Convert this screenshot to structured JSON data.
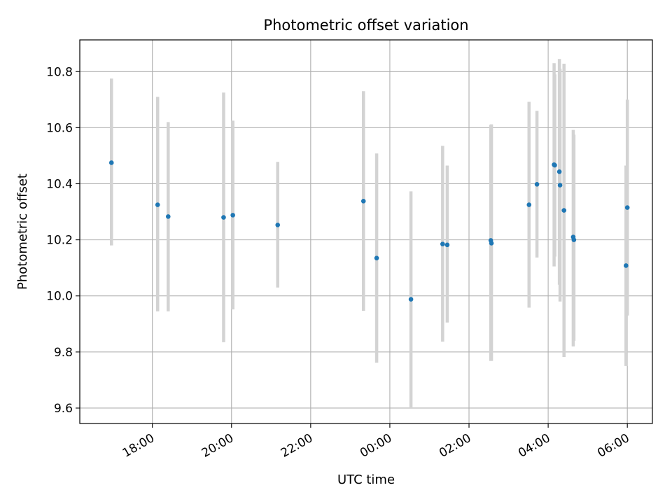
{
  "chart_data": {
    "type": "scatter",
    "title": "Photometric offset variation",
    "xlabel": "UTC time",
    "ylabel": "Photometric offset",
    "xlim": [
      "2000-01-01T16:10",
      "2000-01-02T06:38"
    ],
    "ylim": [
      9.545,
      10.913
    ],
    "grid": true,
    "x_tick_labels": [
      "18:00",
      "20:00",
      "22:00",
      "00:00",
      "02:00",
      "04:00",
      "06:00"
    ],
    "x_tick_times": [
      "2000-01-01T18:00",
      "2000-01-01T20:00",
      "2000-01-01T22:00",
      "2000-01-02T00:00",
      "2000-01-02T02:00",
      "2000-01-02T04:00",
      "2000-01-02T06:00"
    ],
    "y_tick_labels": [
      "9.6",
      "9.8",
      "10.0",
      "10.2",
      "10.4",
      "10.6",
      "10.8"
    ],
    "y_ticks": [
      9.6,
      9.8,
      10.0,
      10.2,
      10.4,
      10.6,
      10.8
    ],
    "colors": {
      "points": "#1f77b4",
      "errorbars": "#d3d3d3",
      "grid": "#b0b0b0"
    },
    "points": [
      {
        "t": "2000-01-01T16:58",
        "y": 10.475,
        "low": 10.18,
        "high": 10.775
      },
      {
        "t": "2000-01-01T18:08",
        "y": 10.325,
        "low": 9.945,
        "high": 10.71
      },
      {
        "t": "2000-01-01T18:24",
        "y": 10.283,
        "low": 9.945,
        "high": 10.62
      },
      {
        "t": "2000-01-01T19:48",
        "y": 10.28,
        "low": 9.835,
        "high": 10.725
      },
      {
        "t": "2000-01-01T20:02",
        "y": 10.288,
        "low": 9.952,
        "high": 10.625
      },
      {
        "t": "2000-01-01T21:10",
        "y": 10.253,
        "low": 10.03,
        "high": 10.478
      },
      {
        "t": "2000-01-01T23:20",
        "y": 10.338,
        "low": 9.947,
        "high": 10.73
      },
      {
        "t": "2000-01-01T23:40",
        "y": 10.135,
        "low": 9.762,
        "high": 10.508
      },
      {
        "t": "2000-01-02T00:32",
        "y": 9.988,
        "low": 9.6,
        "high": 10.373
      },
      {
        "t": "2000-01-02T01:20",
        "y": 10.185,
        "low": 9.837,
        "high": 10.535
      },
      {
        "t": "2000-01-02T01:27",
        "y": 10.182,
        "low": 9.905,
        "high": 10.465
      },
      {
        "t": "2000-01-02T02:33",
        "y": 10.198,
        "low": 9.768,
        "high": 10.61
      },
      {
        "t": "2000-01-02T02:34",
        "y": 10.188,
        "low": 9.768,
        "high": 10.612
      },
      {
        "t": "2000-01-02T03:31",
        "y": 10.325,
        "low": 9.958,
        "high": 10.692
      },
      {
        "t": "2000-01-02T03:43",
        "y": 10.398,
        "low": 10.137,
        "high": 10.66
      },
      {
        "t": "2000-01-02T04:09",
        "y": 10.468,
        "low": 10.105,
        "high": 10.83
      },
      {
        "t": "2000-01-02T04:10",
        "y": 10.466,
        "low": 10.14,
        "high": 10.79
      },
      {
        "t": "2000-01-02T04:17",
        "y": 10.443,
        "low": 10.04,
        "high": 10.845
      },
      {
        "t": "2000-01-02T04:18",
        "y": 10.395,
        "low": 9.98,
        "high": 10.81
      },
      {
        "t": "2000-01-02T04:24",
        "y": 10.305,
        "low": 9.782,
        "high": 10.828
      },
      {
        "t": "2000-01-02T04:38",
        "y": 10.21,
        "low": 9.82,
        "high": 10.592
      },
      {
        "t": "2000-01-02T04:39",
        "y": 10.2,
        "low": 9.84,
        "high": 10.575
      },
      {
        "t": "2000-01-02T05:58",
        "y": 10.108,
        "low": 9.75,
        "high": 10.465
      },
      {
        "t": "2000-01-02T06:00",
        "y": 10.315,
        "low": 9.93,
        "high": 10.7
      }
    ]
  }
}
